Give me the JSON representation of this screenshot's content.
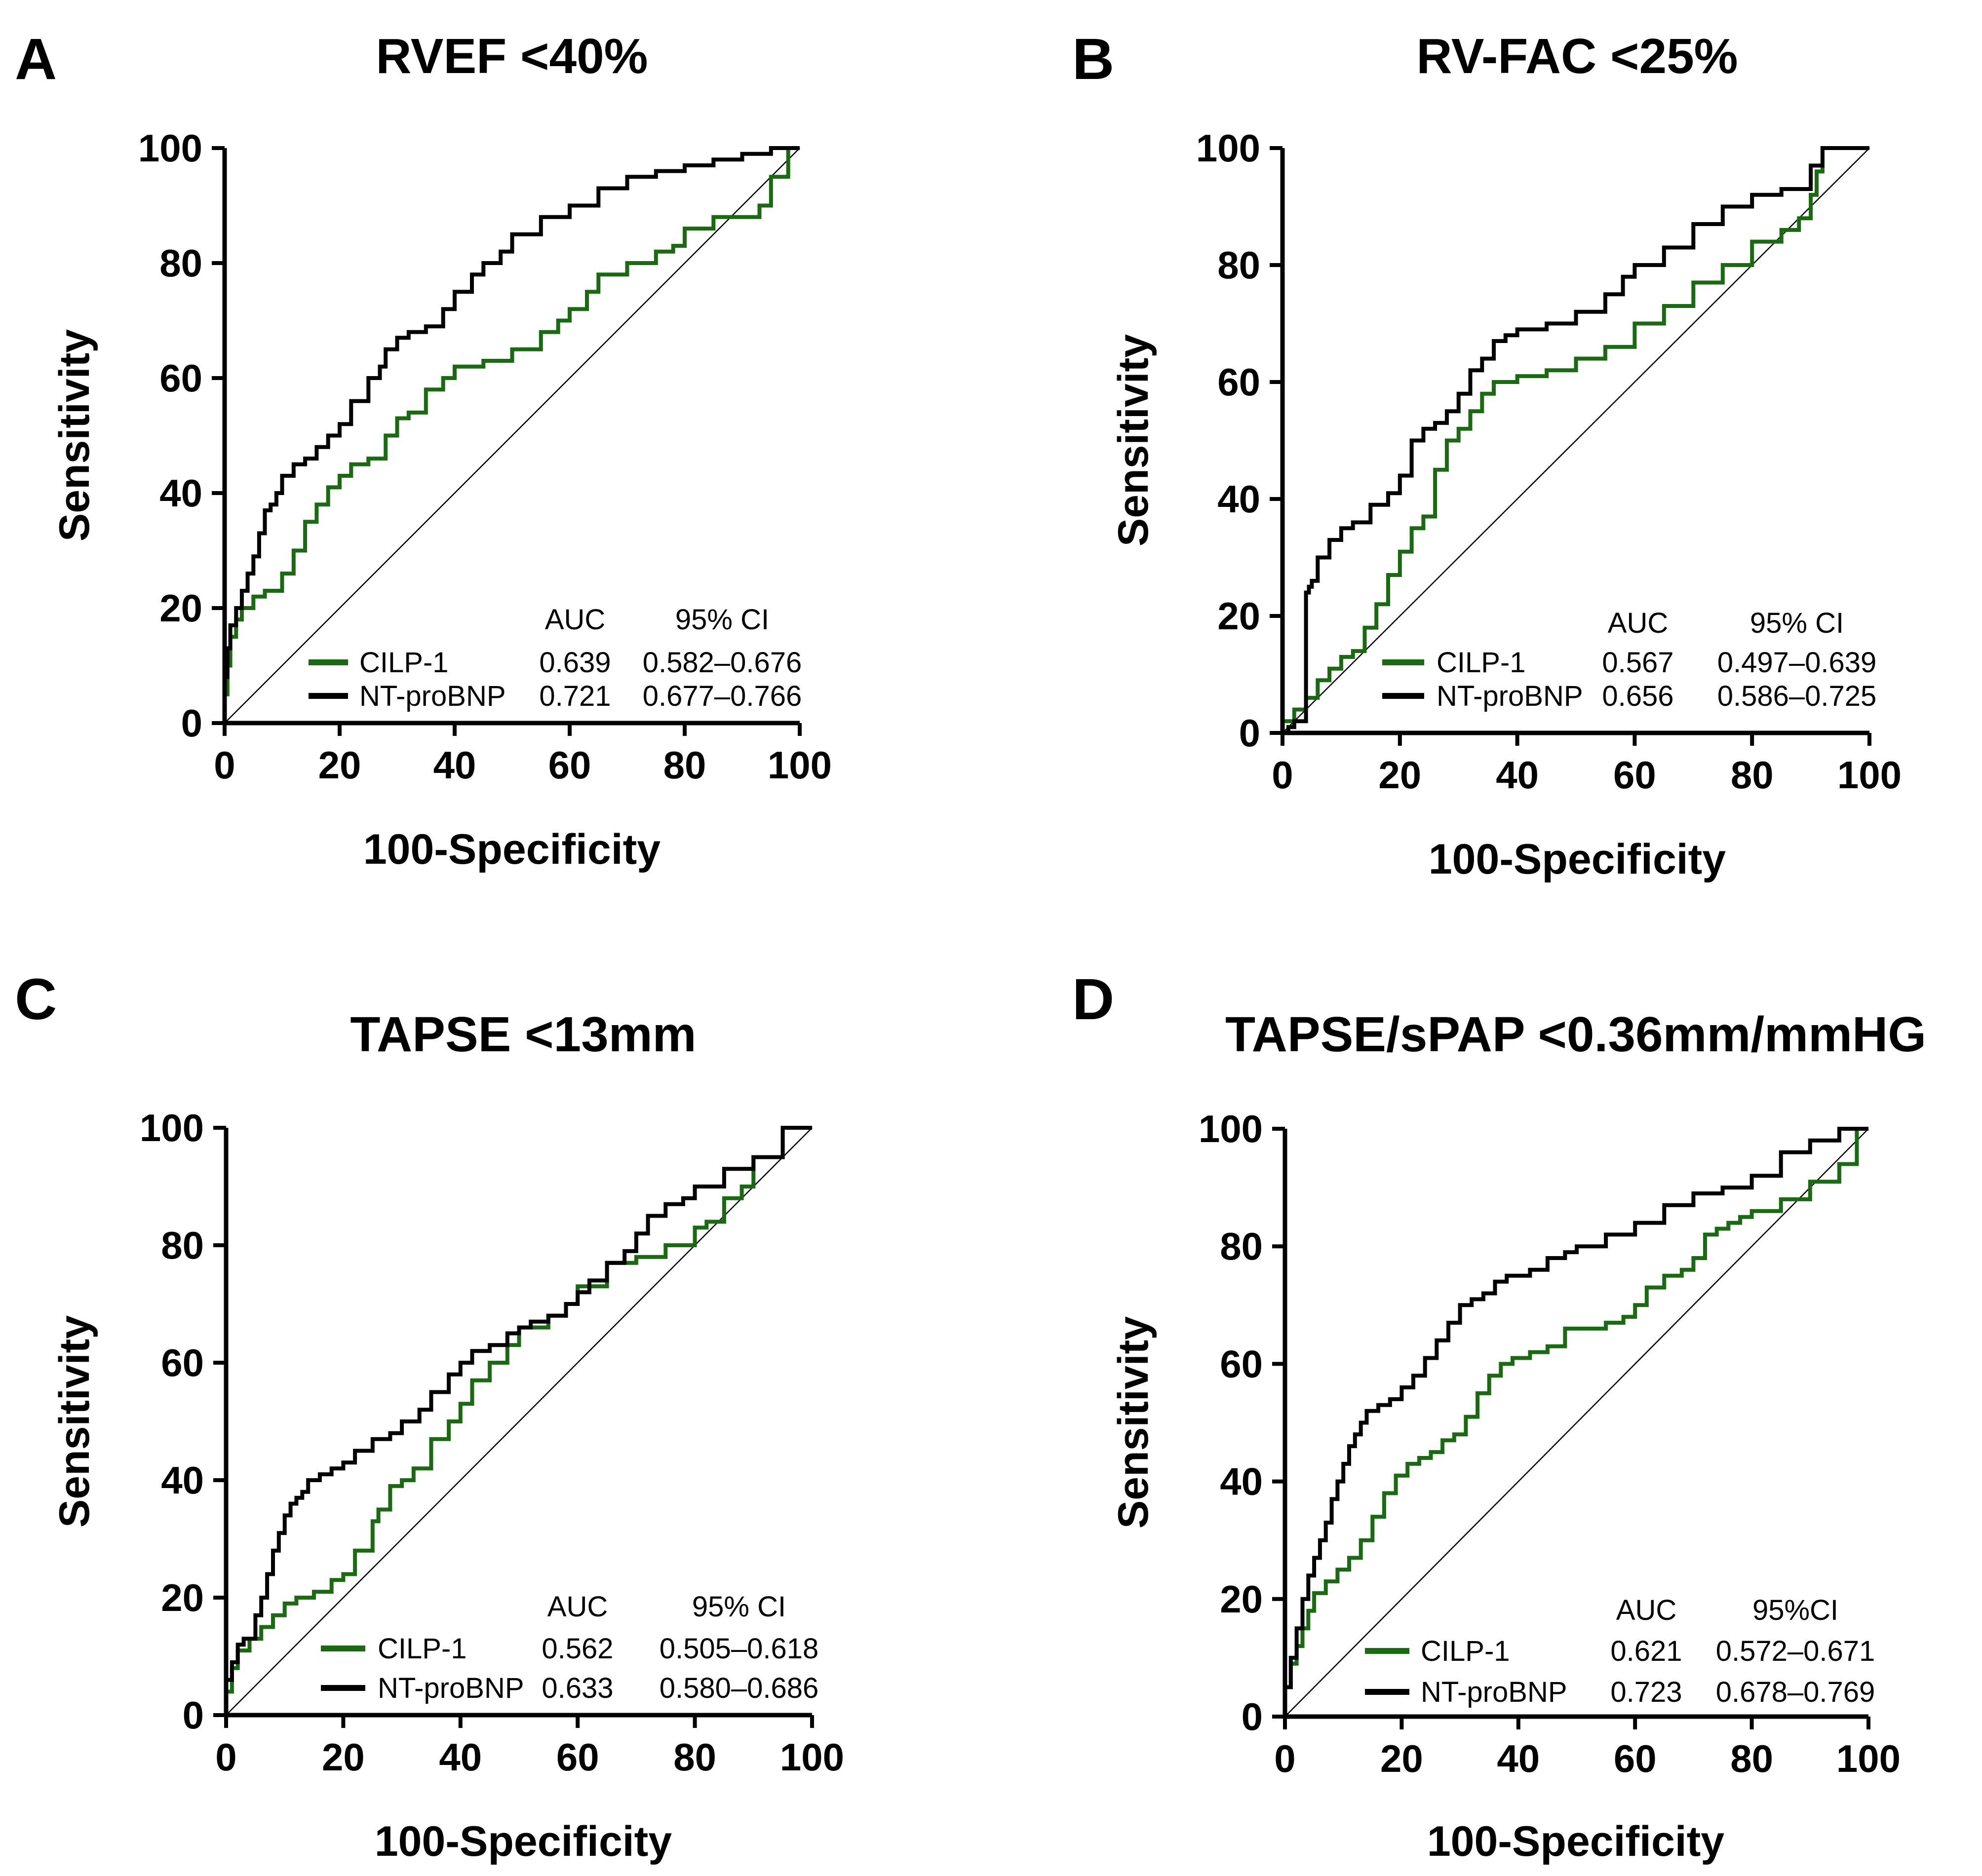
{
  "colors": {
    "cilp": "#1a6a12",
    "ntpro": "#000000"
  },
  "chart_data": [
    {
      "type": "line",
      "panel": "A",
      "title": "RVEF <40%",
      "xlabel": "100-Specificity",
      "ylabel": "Sensitivity",
      "xlim": [
        0,
        100
      ],
      "ylim": [
        0,
        100
      ],
      "xticks": [
        "0",
        "20",
        "40",
        "60",
        "80",
        "100"
      ],
      "yticks": [
        "0",
        "20",
        "40",
        "60",
        "80",
        "100"
      ],
      "legend": {
        "col_auc": "AUC",
        "col_ci": "95% CI",
        "rows": [
          {
            "name": "CILP-1",
            "auc": "0.639",
            "ci": "0.582–0.676"
          },
          {
            "name": "NT-proBNP",
            "auc": "0.721",
            "ci": "0.677–0.766"
          }
        ]
      },
      "series": [
        {
          "name": "CILP-1",
          "color": "#1a6a12",
          "x": [
            0,
            0.5,
            1,
            2,
            3,
            5,
            7,
            10,
            12,
            14,
            16,
            18,
            20,
            22,
            25,
            28,
            30,
            32,
            35,
            38,
            40,
            45,
            50,
            55,
            58,
            60,
            63,
            65,
            70,
            75,
            78,
            80,
            85,
            90,
            93,
            95,
            98,
            100
          ],
          "y": [
            0,
            5,
            10,
            15,
            18,
            20,
            22,
            23,
            26,
            30,
            35,
            38,
            41,
            43,
            45,
            46,
            50,
            53,
            54,
            58,
            60,
            62,
            63,
            65,
            68,
            70,
            72,
            75,
            78,
            80,
            82,
            83,
            86,
            88,
            88,
            90,
            95,
            100
          ]
        },
        {
          "name": "NT-proBNP",
          "color": "#000000",
          "x": [
            0,
            0.5,
            1,
            2,
            3,
            4,
            5,
            6,
            7,
            8,
            9,
            10,
            12,
            14,
            16,
            18,
            20,
            22,
            25,
            27,
            28,
            30,
            32,
            35,
            38,
            40,
            43,
            45,
            48,
            50,
            55,
            60,
            65,
            70,
            75,
            80,
            85,
            90,
            95,
            100
          ],
          "y": [
            0,
            8,
            13,
            17,
            20,
            23,
            26,
            29,
            33,
            37,
            38,
            40,
            43,
            45,
            46,
            48,
            50,
            52,
            56,
            60,
            62,
            65,
            67,
            68,
            69,
            72,
            75,
            78,
            80,
            82,
            85,
            88,
            90,
            93,
            95,
            96,
            97,
            98,
            99,
            100
          ]
        }
      ]
    },
    {
      "type": "line",
      "panel": "B",
      "title": "RV-FAC <25%",
      "xlabel": "100-Specificity",
      "ylabel": "Sensitivity",
      "xlim": [
        0,
        100
      ],
      "ylim": [
        0,
        100
      ],
      "xticks": [
        "0",
        "20",
        "40",
        "60",
        "80",
        "100"
      ],
      "yticks": [
        "0",
        "20",
        "40",
        "60",
        "80",
        "100"
      ],
      "legend": {
        "col_auc": "AUC",
        "col_ci": "95% CI",
        "rows": [
          {
            "name": "CILP-1",
            "auc": "0.567",
            "ci": "0.497–0.639"
          },
          {
            "name": "NT-proBNP",
            "auc": "0.656",
            "ci": "0.586–0.725"
          }
        ]
      },
      "series": [
        {
          "name": "CILP-1",
          "color": "#1a6a12",
          "x": [
            0,
            2,
            4,
            6,
            8,
            10,
            12,
            14,
            16,
            18,
            20,
            22,
            24,
            26,
            28,
            30,
            32,
            34,
            36,
            40,
            45,
            50,
            55,
            60,
            65,
            70,
            75,
            80,
            85,
            88,
            90,
            91,
            92,
            95,
            100
          ],
          "y": [
            0,
            2,
            4,
            6,
            9,
            11,
            13,
            14,
            18,
            22,
            27,
            31,
            35,
            37,
            45,
            50,
            52,
            55,
            58,
            60,
            61,
            62,
            64,
            66,
            70,
            73,
            77,
            80,
            84,
            86,
            88,
            92,
            96,
            100,
            100
          ]
        },
        {
          "name": "NT-proBNP",
          "color": "#000000",
          "x": [
            0,
            1,
            2,
            3,
            4,
            4.5,
            5,
            6,
            8,
            10,
            12,
            15,
            18,
            20,
            22,
            24,
            26,
            28,
            30,
            32,
            34,
            36,
            38,
            40,
            45,
            50,
            55,
            58,
            60,
            65,
            70,
            75,
            80,
            85,
            88,
            90,
            92,
            95,
            100
          ],
          "y": [
            0,
            0,
            1,
            2,
            2,
            24,
            25,
            26,
            30,
            33,
            35,
            36,
            39,
            41,
            44,
            50,
            52,
            53,
            55,
            58,
            62,
            64,
            67,
            68,
            69,
            70,
            72,
            75,
            78,
            80,
            83,
            87,
            90,
            92,
            93,
            93,
            97,
            100,
            100
          ]
        }
      ]
    },
    {
      "type": "line",
      "panel": "C",
      "title": "TAPSE <13mm",
      "xlabel": "100-Specificity",
      "ylabel": "Sensitivity",
      "xlim": [
        0,
        100
      ],
      "ylim": [
        0,
        100
      ],
      "xticks": [
        "0",
        "20",
        "40",
        "60",
        "80",
        "100"
      ],
      "yticks": [
        "0",
        "20",
        "40",
        "60",
        "80",
        "100"
      ],
      "legend": {
        "col_auc": "AUC",
        "col_ci": "95% CI",
        "rows": [
          {
            "name": "CILP-1",
            "auc": "0.562",
            "ci": "0.505–0.618"
          },
          {
            "name": "NT-proBNP",
            "auc": "0.633",
            "ci": "0.580–0.686"
          }
        ]
      },
      "series": [
        {
          "name": "CILP-1",
          "color": "#1a6a12",
          "x": [
            0,
            1,
            2,
            4,
            6,
            8,
            10,
            12,
            15,
            18,
            20,
            22,
            25,
            26,
            28,
            30,
            32,
            35,
            38,
            40,
            42,
            45,
            48,
            50,
            55,
            58,
            60,
            65,
            70,
            75,
            80,
            82,
            85,
            88,
            90,
            95,
            100
          ],
          "y": [
            0,
            4,
            8,
            11,
            13,
            15,
            17,
            19,
            20,
            21,
            23,
            24,
            28,
            33,
            35,
            39,
            40,
            42,
            47,
            50,
            53,
            57,
            60,
            63,
            66,
            68,
            70,
            73,
            77,
            78,
            80,
            83,
            84,
            88,
            90,
            95,
            100
          ]
        },
        {
          "name": "NT-proBNP",
          "color": "#000000",
          "x": [
            0,
            1,
            2,
            3,
            4,
            5,
            6,
            7,
            8,
            9,
            10,
            11,
            12,
            13,
            14,
            16,
            18,
            20,
            22,
            25,
            28,
            30,
            33,
            35,
            38,
            40,
            42,
            45,
            48,
            50,
            52,
            55,
            58,
            60,
            62,
            65,
            68,
            70,
            72,
            75,
            78,
            80,
            85,
            90,
            95,
            100
          ],
          "y": [
            0,
            6,
            9,
            12,
            13,
            13,
            17,
            20,
            24,
            28,
            31,
            34,
            36,
            37,
            38,
            40,
            41,
            42,
            43,
            45,
            47,
            48,
            50,
            52,
            55,
            58,
            60,
            62,
            63,
            65,
            66,
            67,
            68,
            70,
            72,
            74,
            77,
            79,
            82,
            85,
            87,
            88,
            90,
            93,
            95,
            100
          ]
        }
      ]
    },
    {
      "type": "line",
      "panel": "D",
      "title": "TAPSE/sPAP <0.36mm/mmHG",
      "xlabel": "100-Specificity",
      "ylabel": "Sensitivity",
      "xlim": [
        0,
        100
      ],
      "ylim": [
        0,
        100
      ],
      "xticks": [
        "0",
        "20",
        "40",
        "60",
        "80",
        "100"
      ],
      "yticks": [
        "0",
        "20",
        "40",
        "60",
        "80",
        "100"
      ],
      "legend": {
        "col_auc": "AUC",
        "col_ci": "95%CI",
        "rows": [
          {
            "name": "CILP-1",
            "auc": "0.621",
            "ci": "0.572–0.671"
          },
          {
            "name": "NT-proBNP",
            "auc": "0.723",
            "ci": "0.678–0.769"
          }
        ]
      },
      "series": [
        {
          "name": "CILP-1",
          "color": "#1a6a12",
          "x": [
            0,
            1,
            2,
            3,
            4,
            5,
            7,
            9,
            11,
            13,
            15,
            17,
            19,
            21,
            23,
            25,
            27,
            29,
            31,
            33,
            35,
            37,
            39,
            42,
            45,
            48,
            52,
            55,
            58,
            60,
            62,
            65,
            68,
            70,
            72,
            74,
            76,
            78,
            80,
            85,
            90,
            95,
            98,
            100
          ],
          "y": [
            0,
            5,
            9,
            12,
            15,
            18,
            21,
            23,
            25,
            27,
            30,
            34,
            38,
            41,
            43,
            44,
            45,
            47,
            48,
            51,
            55,
            58,
            60,
            61,
            62,
            63,
            66,
            66,
            67,
            68,
            70,
            73,
            75,
            76,
            78,
            82,
            83,
            84,
            85,
            86,
            88,
            91,
            94,
            100
          ]
        },
        {
          "name": "NT-proBNP",
          "color": "#000000",
          "x": [
            0,
            1,
            2,
            3,
            4,
            5,
            6,
            7,
            8,
            9,
            10,
            11,
            12,
            13,
            14,
            16,
            18,
            20,
            22,
            24,
            26,
            28,
            30,
            32,
            34,
            36,
            38,
            40,
            42,
            45,
            48,
            50,
            55,
            60,
            65,
            70,
            75,
            80,
            85,
            90,
            95,
            100
          ],
          "y": [
            0,
            5,
            10,
            15,
            20,
            24,
            27,
            30,
            33,
            37,
            40,
            43,
            46,
            48,
            50,
            52,
            53,
            54,
            56,
            58,
            61,
            64,
            67,
            70,
            71,
            72,
            74,
            75,
            75,
            76,
            78,
            79,
            80,
            82,
            84,
            87,
            89,
            90,
            92,
            96,
            98,
            100
          ]
        }
      ]
    }
  ]
}
